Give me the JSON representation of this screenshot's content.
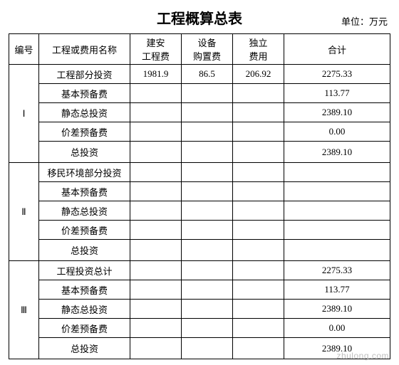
{
  "title": "工程概算总表",
  "unit_label": "单位：万元",
  "columns": {
    "id": "编号",
    "name": "工程或费用名称",
    "v1_line1": "建安",
    "v1_line2": "工程费",
    "v2_line1": "设备",
    "v2_line2": "购置费",
    "v3_line1": "独立",
    "v3_line2": "费用",
    "total": "合计"
  },
  "sections": [
    {
      "id": "Ⅰ",
      "rows": [
        {
          "name": "工程部分投资",
          "v1": "1981.9",
          "v2": "86.5",
          "v3": "206.92",
          "total": "2275.33"
        },
        {
          "name": "基本预备费",
          "v1": "",
          "v2": "",
          "v3": "",
          "total": "113.77"
        },
        {
          "name": "静态总投资",
          "v1": "",
          "v2": "",
          "v3": "",
          "total": "2389.10"
        },
        {
          "name": "价差预备费",
          "v1": "",
          "v2": "",
          "v3": "",
          "total": "0.00"
        },
        {
          "name": "总投资",
          "v1": "",
          "v2": "",
          "v3": "",
          "total": "2389.10"
        }
      ]
    },
    {
      "id": "Ⅱ",
      "rows": [
        {
          "name": "移民环境部分投资",
          "v1": "",
          "v2": "",
          "v3": "",
          "total": ""
        },
        {
          "name": "基本预备费",
          "v1": "",
          "v2": "",
          "v3": "",
          "total": ""
        },
        {
          "name": "静态总投资",
          "v1": "",
          "v2": "",
          "v3": "",
          "total": ""
        },
        {
          "name": "价差预备费",
          "v1": "",
          "v2": "",
          "v3": "",
          "total": ""
        },
        {
          "name": "总投资",
          "v1": "",
          "v2": "",
          "v3": "",
          "total": ""
        }
      ]
    },
    {
      "id": "Ⅲ",
      "rows": [
        {
          "name": "工程投资总计",
          "v1": "",
          "v2": "",
          "v3": "",
          "total": "2275.33"
        },
        {
          "name": "基本预备费",
          "v1": "",
          "v2": "",
          "v3": "",
          "total": "113.77"
        },
        {
          "name": "静态总投资",
          "v1": "",
          "v2": "",
          "v3": "",
          "total": "2389.10"
        },
        {
          "name": "价差预备费",
          "v1": "",
          "v2": "",
          "v3": "",
          "total": "0.00"
        },
        {
          "name": "总投资",
          "v1": "",
          "v2": "",
          "v3": "",
          "total": "2389.10"
        }
      ]
    }
  ],
  "watermark": "zhulong.com"
}
